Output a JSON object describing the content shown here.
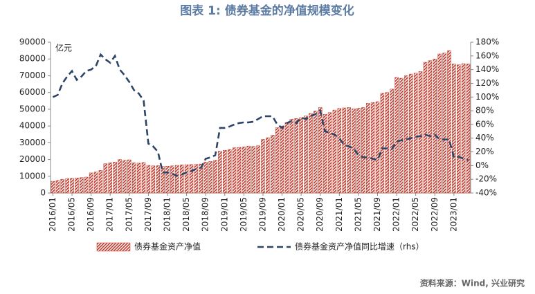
{
  "chart_data": {
    "type": "bar+line",
    "title": "图表 1: 债券基金的净值规模变化",
    "unit_label": "亿元",
    "source": "资料来源：Wind, 兴业研究",
    "categories": [
      "2016/01",
      null,
      null,
      null,
      "2016/05",
      null,
      null,
      null,
      "2016/09",
      null,
      null,
      null,
      "2017/01",
      null,
      null,
      null,
      "2017/05",
      null,
      null,
      null,
      "2017/09",
      null,
      null,
      null,
      "2018/01",
      null,
      null,
      null,
      "2018/05",
      null,
      null,
      null,
      "2018/09",
      null,
      null,
      null,
      "2019/01",
      null,
      null,
      null,
      "2019/05",
      null,
      null,
      null,
      "2019/09",
      null,
      null,
      null,
      "2020/01",
      null,
      null,
      null,
      "2020/05",
      null,
      null,
      null,
      "2020/09",
      null,
      null,
      null,
      "2021/01",
      null,
      null,
      null,
      "2021/05",
      null,
      null,
      null,
      "2021/09",
      null,
      null,
      null,
      "2022/01",
      null,
      null,
      null,
      "2022/05",
      null,
      null,
      null,
      "2022/09",
      null,
      null,
      null,
      "2023/01",
      null,
      null,
      null
    ],
    "series": [
      {
        "name": "债券基金资产净值",
        "type": "bar",
        "color": "#c0392b",
        "values": [
          7000,
          7500,
          8200,
          8600,
          8800,
          9000,
          9200,
          9500,
          12000,
          12500,
          13500,
          17500,
          18000,
          18500,
          20000,
          19500,
          19800,
          18000,
          17800,
          18200,
          16500,
          16200,
          16300,
          15800,
          16000,
          16200,
          16500,
          16800,
          16900,
          17000,
          17100,
          17300,
          18500,
          18800,
          19500,
          25000,
          25500,
          26000,
          27000,
          27200,
          27500,
          28000,
          27800,
          28200,
          32000,
          33000,
          34500,
          39000,
          40000,
          42000,
          44000,
          44500,
          45000,
          46000,
          47500,
          49000,
          51000,
          47000,
          48000,
          49500,
          50500,
          50800,
          51000,
          50200,
          50600,
          51000,
          53500,
          54000,
          54500,
          59500,
          60000,
          62000,
          69000,
          68500,
          70000,
          71000,
          71500,
          72500,
          78000,
          79000,
          80000,
          83000,
          83500,
          85000,
          77000,
          76500,
          77200,
          77000
        ]
      },
      {
        "name": "债券基金资产净值同比增速（rhs）",
        "type": "line",
        "axis": "y2",
        "color": "#2e4466",
        "values": [
          100,
          103,
          120,
          130,
          138,
          125,
          130,
          138,
          140,
          145,
          162,
          155,
          150,
          160,
          140,
          132,
          122,
          110,
          105,
          95,
          32,
          28,
          20,
          -10,
          -10,
          -12,
          -15,
          -13,
          -10,
          -8,
          -5,
          -3,
          10,
          12,
          15,
          55,
          55,
          57,
          60,
          62,
          63,
          63,
          64,
          68,
          72,
          72,
          72,
          60,
          55,
          62,
          65,
          62,
          70,
          68,
          72,
          75,
          80,
          50,
          48,
          45,
          40,
          30,
          28,
          25,
          15,
          12,
          12,
          10,
          8,
          25,
          25,
          24,
          35,
          37,
          38,
          40,
          42,
          43,
          45,
          43,
          45,
          38,
          38,
          38,
          12,
          13,
          10,
          8
        ]
      }
    ],
    "ylim": [
      0,
      90000
    ],
    "yticks": [
      0,
      10000,
      20000,
      30000,
      40000,
      50000,
      60000,
      70000,
      80000,
      90000
    ],
    "y2lim": [
      -40,
      180
    ],
    "y2ticks": [
      {
        "value": -40,
        "label": "-40%"
      },
      {
        "value": -20,
        "label": "-20%"
      },
      {
        "value": 0,
        "label": "0%"
      },
      {
        "value": 20,
        "label": "20%"
      },
      {
        "value": 40,
        "label": "40%"
      },
      {
        "value": 60,
        "label": "60%"
      },
      {
        "value": 80,
        "label": "80%"
      },
      {
        "value": 100,
        "label": "100%"
      },
      {
        "value": 120,
        "label": "120%"
      },
      {
        "value": 140,
        "label": "140%"
      },
      {
        "value": 160,
        "label": "160%"
      },
      {
        "value": 180,
        "label": "180%"
      }
    ],
    "legend": "bottom"
  }
}
